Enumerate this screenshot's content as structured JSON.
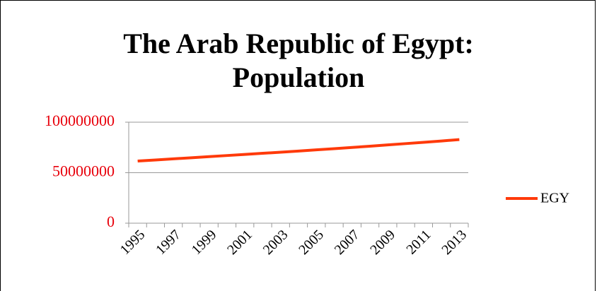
{
  "chart_data": {
    "type": "line",
    "title": "The Arab Republic of Egypt: Population",
    "categories": [
      "1995",
      null,
      "1997",
      null,
      "1999",
      null,
      "2001",
      null,
      "2003",
      null,
      "2005",
      null,
      "2007",
      null,
      "2009",
      null,
      "2011",
      null,
      "2013"
    ],
    "series": [
      {
        "name": "EGY",
        "color": "#ff3a0a",
        "values": [
          61500000,
          62600000,
          63700000,
          64800000,
          65900000,
          67000000,
          68100000,
          69200000,
          70300000,
          71400000,
          72600000,
          73800000,
          75000000,
          76200000,
          77500000,
          78800000,
          80100000,
          81400000,
          82800000
        ]
      }
    ],
    "ylim": [
      0,
      100000000
    ],
    "yticks": [
      0,
      50000000,
      100000000
    ],
    "grid": true,
    "legend": "right",
    "tick_label_color": "#e8000b"
  }
}
